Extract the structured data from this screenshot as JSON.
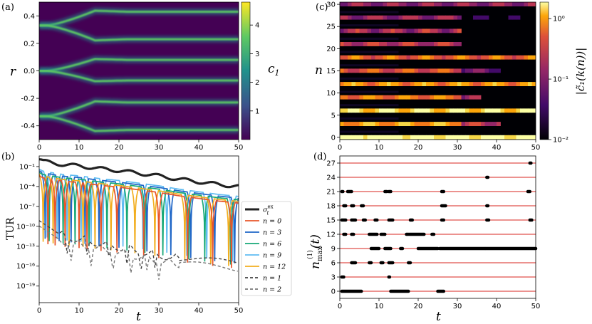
{
  "panels": {
    "a": {
      "label": "(a)",
      "xlabel": "t",
      "ylabel": "r",
      "cbar_label": "c",
      "cbar_sub": "1"
    },
    "b": {
      "label": "(b)",
      "xlabel": "t",
      "ylabel": "TUR"
    },
    "c": {
      "label": "(c)",
      "xlabel": "",
      "ylabel": "n",
      "cbar_label": "|c̃₁(k(n))|"
    },
    "d": {
      "label": "(d)",
      "xlabel": "t",
      "ylabel_main": "n",
      "ylabel_sub": "max",
      "ylabel_sup": "(1)",
      "ylabel_tail": "(t)"
    }
  },
  "colors": {
    "viridis_low": "#440154",
    "viridis_high": "#fde725",
    "inferno_low": "#000004",
    "inferno_high": "#fcffa4",
    "sigma": "#222222",
    "n0": "#e8562a",
    "n3": "#1f66c7",
    "n6": "#17a877",
    "n9": "#5fbcf2",
    "n12": "#f2ae1f",
    "dashed": "#666666",
    "red_line": "#d8261f"
  },
  "chart_data": [
    {
      "panel": "a",
      "type": "heatmap",
      "xlim": [
        0,
        50
      ],
      "ylim": [
        -0.5,
        0.5
      ],
      "xticks": [
        "0",
        "10",
        "20",
        "30",
        "40",
        "50"
      ],
      "yticks": [
        "-0.4",
        "-0.2",
        "0.0",
        "0.2",
        "0.4"
      ],
      "colorbar": {
        "ticks": [
          "1",
          "2",
          "3",
          "4"
        ],
        "range": [
          0,
          4.8
        ],
        "colormap": "viridis"
      },
      "branch_time": 14,
      "initial_peaks": [
        0.33,
        0.0,
        -0.33
      ],
      "final_peaks": [
        0.43,
        0.23,
        0.08,
        -0.07,
        -0.23,
        -0.43
      ]
    },
    {
      "panel": "b",
      "type": "line",
      "xlim": [
        0,
        50
      ],
      "ylog": true,
      "xticks": [
        "0",
        "10",
        "20",
        "30",
        "40",
        "50"
      ],
      "yticks": [
        "10⁻¹",
        "10⁻⁴",
        "10⁻⁷",
        "10⁻¹⁰",
        "10⁻¹³",
        "10⁻¹⁶",
        "10⁻¹⁹"
      ],
      "series": [
        {
          "name": "σ",
          "sup": "ex",
          "sub": "t",
          "style": "solid-thick"
        },
        {
          "name": "n = 0",
          "style": "solid"
        },
        {
          "name": "n = 3",
          "style": "solid"
        },
        {
          "name": "n = 6",
          "style": "solid"
        },
        {
          "name": "n = 9",
          "style": "solid"
        },
        {
          "name": "n = 12",
          "style": "solid"
        },
        {
          "name": "n = 1",
          "style": "dashed"
        },
        {
          "name": "n = 2",
          "style": "dashed"
        }
      ],
      "sigma_curve": {
        "t": [
          0,
          1,
          3,
          6,
          10,
          15,
          20,
          25,
          30,
          35,
          40,
          45,
          50
        ],
        "log10": [
          0.1,
          -0.2,
          -0.4,
          -0.7,
          -0.9,
          -1.3,
          -1.6,
          -2.0,
          -2.4,
          -2.9,
          -3.3,
          -3.7,
          -4.0
        ]
      }
    },
    {
      "panel": "c",
      "type": "heatmap",
      "xlim": [
        0,
        50
      ],
      "ylim": [
        0,
        31
      ],
      "xticks": [
        "0",
        "10",
        "20",
        "30",
        "40",
        "50"
      ],
      "yticks": [
        "0",
        "5",
        "10",
        "15",
        "20",
        "25",
        "30"
      ],
      "colorbar": {
        "ticks": [
          "10⁰",
          "10⁻¹",
          "10⁻²"
        ],
        "colormap": "inferno",
        "log": true
      },
      "bright_rows": [
        0,
        3,
        6,
        9,
        12,
        15,
        18,
        21,
        24,
        27,
        30
      ]
    },
    {
      "panel": "d",
      "type": "scatter",
      "xlim": [
        0,
        50
      ],
      "ylim": [
        -1.5,
        28.5
      ],
      "xticks": [
        "0",
        "10",
        "20",
        "30",
        "40",
        "50"
      ],
      "yticks": [
        "0",
        "3",
        "6",
        "9",
        "12",
        "15",
        "18",
        "21",
        "24",
        "27"
      ],
      "hlines": [
        0,
        3,
        6,
        9,
        12,
        15,
        18,
        21,
        24,
        27
      ],
      "segments": [
        {
          "y": 0,
          "t": [
            [
              0.5,
              5.5
            ],
            [
              13,
              17.5
            ],
            [
              25,
              26.5
            ]
          ]
        },
        {
          "y": 3,
          "t": [
            [
              0.5,
              1
            ],
            [
              12.5,
              12.7
            ]
          ]
        },
        {
          "y": 6,
          "t": [
            [
              3,
              4
            ],
            [
              7.5,
              8
            ],
            [
              10.5,
              11
            ],
            [
              12.5,
              13.5
            ],
            [
              17.5,
              18
            ]
          ]
        },
        {
          "y": 9,
          "t": [
            [
              8,
              10
            ],
            [
              11.5,
              13
            ],
            [
              15.5,
              16
            ],
            [
              20,
              25
            ],
            [
              25.5,
              37
            ],
            [
              37.2,
              50
            ]
          ]
        },
        {
          "y": 12,
          "t": [
            [
              1,
              1.5
            ],
            [
              3,
              3.5
            ],
            [
              7.5,
              9.5
            ],
            [
              10.5,
              11.5
            ],
            [
              17,
              17.5
            ],
            [
              17.8,
              21.5
            ],
            [
              23.5,
              24
            ]
          ]
        },
        {
          "y": 15,
          "t": [
            [
              0.5,
              1.5
            ],
            [
              3,
              4
            ],
            [
              6,
              6.5
            ],
            [
              9,
              9.5
            ],
            [
              12.5,
              13.5
            ],
            [
              18,
              18.5
            ],
            [
              26,
              26.5
            ],
            [
              37.5,
              38
            ],
            [
              48.5,
              49
            ]
          ]
        },
        {
          "y": 18,
          "t": [
            [
              1,
              1.5
            ],
            [
              3,
              3.5
            ],
            [
              5.5,
              6
            ],
            [
              26,
              27
            ],
            [
              37.5,
              37.8
            ]
          ]
        },
        {
          "y": 21,
          "t": [
            [
              0.5,
              0.8
            ],
            [
              2,
              3
            ],
            [
              11.5,
              12
            ],
            [
              12.5,
              13
            ],
            [
              26,
              26.5
            ],
            [
              48,
              48.5
            ]
          ]
        },
        {
          "y": 24,
          "t": [
            [
              37.5,
              37.8
            ]
          ]
        },
        {
          "y": 27,
          "t": [
            [
              48.5,
              48.8
            ]
          ]
        }
      ]
    }
  ]
}
